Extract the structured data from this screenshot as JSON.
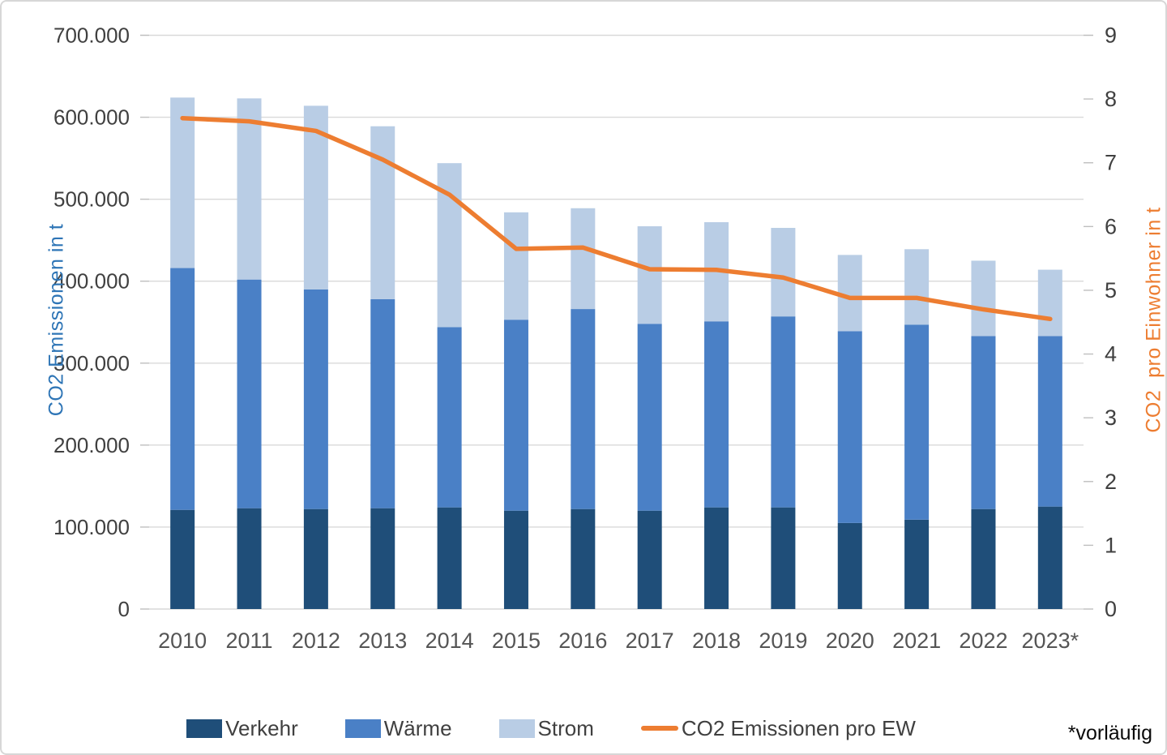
{
  "chart": {
    "left_axis_title": "CO2 Emissionen in t",
    "right_axis_title": "CO2  pro Einwohner in t",
    "footnote": "*vorläufig",
    "colors": {
      "verkehr": "#1F4E79",
      "waerme": "#4A80C6",
      "strom": "#B9CDE5",
      "line": "#ED7D31",
      "grid": "#D9D9D9",
      "tick": "#BFBFBF",
      "axis_text": "#404040",
      "x_text": "#555555",
      "left_title": "#2E75B6",
      "right_title": "#ED7D31"
    }
  },
  "chart_data": {
    "type": "bar",
    "stacked": true,
    "grid": true,
    "legend_position": "bottom",
    "categories": [
      "2010",
      "2011",
      "2012",
      "2013",
      "2014",
      "2015",
      "2016",
      "2017",
      "2018",
      "2019",
      "2020",
      "2021",
      "2022",
      "2023*"
    ],
    "series": [
      {
        "name": "Verkehr",
        "type": "bar",
        "axis": "left",
        "values": [
          121000,
          123000,
          122000,
          123000,
          124000,
          120000,
          122000,
          120000,
          124000,
          124000,
          105000,
          109000,
          122000,
          125000
        ]
      },
      {
        "name": "Wärme",
        "type": "bar",
        "axis": "left",
        "values": [
          295000,
          279000,
          268000,
          255000,
          220000,
          233000,
          244000,
          228000,
          227000,
          233000,
          234000,
          238000,
          211000,
          208000
        ]
      },
      {
        "name": "Strom",
        "type": "bar",
        "axis": "left",
        "values": [
          208000,
          221000,
          224000,
          211000,
          200000,
          131000,
          123000,
          119000,
          121000,
          108000,
          93000,
          92000,
          92000,
          81000
        ]
      },
      {
        "name": "CO2 Emissionen pro EW",
        "type": "line",
        "axis": "right",
        "values": [
          7.7,
          7.65,
          7.5,
          7.05,
          6.5,
          5.65,
          5.67,
          5.33,
          5.32,
          5.2,
          4.88,
          4.88,
          4.7,
          4.55
        ]
      }
    ],
    "bar_totals": [
      624000,
      623000,
      614000,
      589000,
      544000,
      484000,
      489000,
      467000,
      472000,
      465000,
      432000,
      439000,
      425000,
      414000
    ],
    "left_axis": {
      "label": "CO2 Emissionen in t",
      "min": 0,
      "max": 700000,
      "step": 100000,
      "tick_labels": [
        "0",
        "100.000",
        "200.000",
        "300.000",
        "400.000",
        "500.000",
        "600.000",
        "700.000"
      ]
    },
    "right_axis": {
      "label": "CO2  pro Einwohner in t",
      "min": 0,
      "max": 9,
      "step": 1,
      "tick_labels": [
        "0",
        "1",
        "2",
        "3",
        "4",
        "5",
        "6",
        "7",
        "8",
        "9"
      ]
    }
  }
}
